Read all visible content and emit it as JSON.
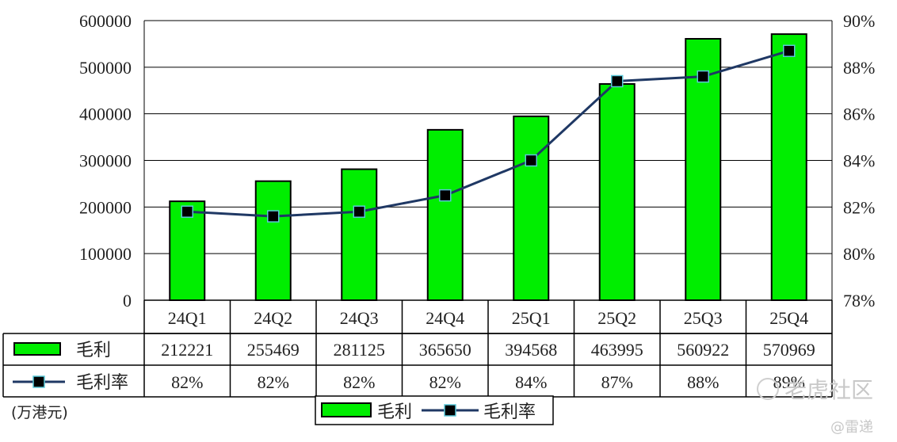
{
  "chart_data": {
    "type": "bar",
    "categories": [
      "24Q1",
      "24Q2",
      "24Q3",
      "24Q4",
      "25Q1",
      "25Q2",
      "25Q3",
      "25Q4"
    ],
    "series": [
      {
        "name": "毛利",
        "type": "bar",
        "axis": "left",
        "color": "#00ee00",
        "values": [
          212221,
          255469,
          281125,
          365650,
          394568,
          463995,
          560922,
          570969
        ]
      },
      {
        "name": "毛利率",
        "type": "line",
        "axis": "right",
        "color": "#1f3864",
        "values": [
          81.8,
          81.6,
          81.8,
          82.5,
          84.0,
          87.4,
          87.6,
          88.7
        ]
      }
    ],
    "table_rows": [
      {
        "label": "毛利",
        "values": [
          "212221",
          "255469",
          "281125",
          "365650",
          "394568",
          "463995",
          "560922",
          "570969"
        ]
      },
      {
        "label": "毛利率",
        "values": [
          "82%",
          "82%",
          "82%",
          "82%",
          "84%",
          "87%",
          "88%",
          "89%"
        ]
      }
    ],
    "ylim": [
      0,
      600000
    ],
    "y_ticks": [
      "600000",
      "500000",
      "400000",
      "300000",
      "200000",
      "100000",
      "0"
    ],
    "y2lim": [
      78,
      90
    ],
    "y2_ticks": [
      "90%",
      "88%",
      "86%",
      "84%",
      "82%",
      "80%",
      "78%"
    ],
    "unit_note": "(万港元)",
    "legend": {
      "position": "bottom",
      "items": [
        "毛利",
        "毛利率"
      ]
    },
    "grid": true
  },
  "watermark": {
    "main": "老虎社区",
    "sub": "@雷递"
  }
}
